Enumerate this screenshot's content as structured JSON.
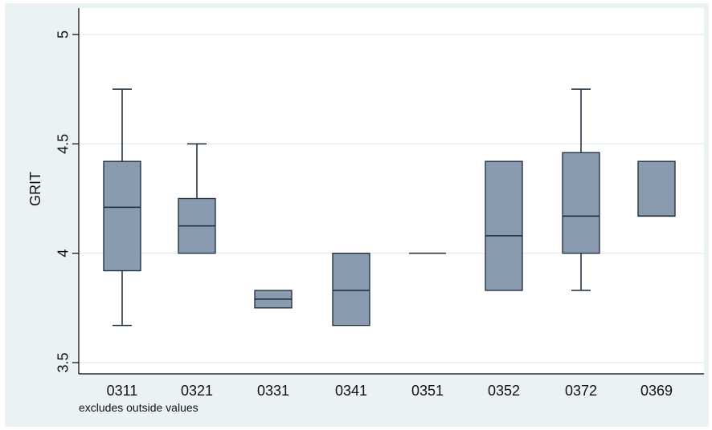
{
  "chart_data": {
    "type": "box",
    "ylabel": "GRIT",
    "xlabel": "",
    "ylim": [
      3.5,
      5
    ],
    "yticks": [
      "3.5",
      "4",
      "4.5",
      "5"
    ],
    "grid": true,
    "note": "excludes outside values",
    "colors": {
      "background": "#eaf2f3",
      "plot_area": "#ffffff",
      "box_fill": "#8a9bb0",
      "box_stroke": "#1a2a3a",
      "gridline": "#e6eef0",
      "axis": "#000000"
    },
    "categories": [
      "0311",
      "0321",
      "0331",
      "0341",
      "0351",
      "0352",
      "0372",
      "0369"
    ],
    "boxes": [
      {
        "category": "0311",
        "whisker_low": 3.67,
        "q1": 3.92,
        "median": 4.21,
        "q3": 4.42,
        "whisker_high": 4.75
      },
      {
        "category": "0321",
        "whisker_low": 4.0,
        "q1": 4.0,
        "median": 4.125,
        "q3": 4.25,
        "whisker_high": 4.5
      },
      {
        "category": "0331",
        "whisker_low": 3.75,
        "q1": 3.75,
        "median": 3.79,
        "q3": 3.83,
        "whisker_high": 3.83
      },
      {
        "category": "0341",
        "whisker_low": 3.67,
        "q1": 3.67,
        "median": 3.83,
        "q3": 4.0,
        "whisker_high": 4.0
      },
      {
        "category": "0351",
        "whisker_low": 4.0,
        "q1": 4.0,
        "median": 4.0,
        "q3": 4.0,
        "whisker_high": 4.0
      },
      {
        "category": "0352",
        "whisker_low": 3.83,
        "q1": 3.83,
        "median": 4.08,
        "q3": 4.42,
        "whisker_high": 4.42
      },
      {
        "category": "0372",
        "whisker_low": 3.83,
        "q1": 4.0,
        "median": 4.17,
        "q3": 4.46,
        "whisker_high": 4.75
      },
      {
        "category": "0369",
        "whisker_low": 4.17,
        "q1": 4.17,
        "median": 4.17,
        "q3": 4.42,
        "whisker_high": 4.42
      }
    ]
  }
}
